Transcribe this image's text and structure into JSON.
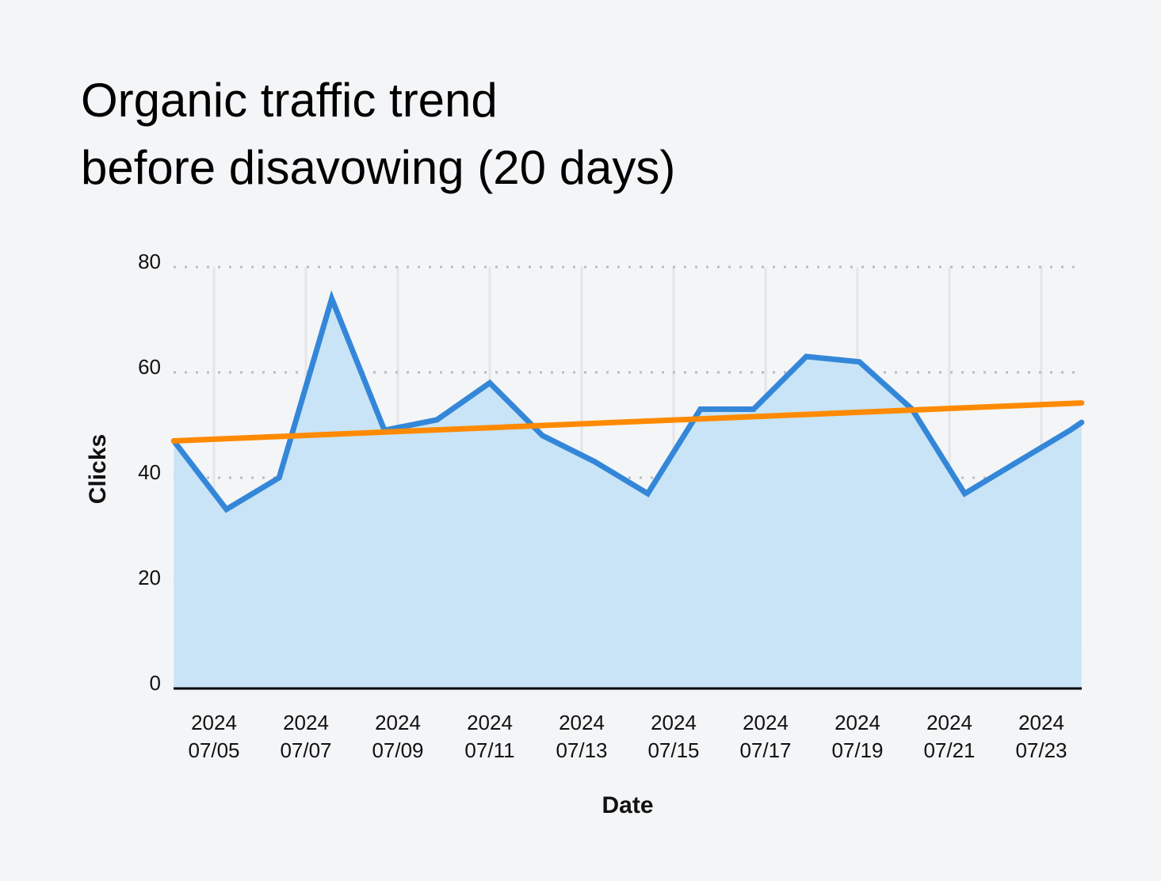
{
  "chart_data": {
    "type": "area",
    "title": [
      "Organic traffic trend",
      "before disavowing (20 days)"
    ],
    "xlabel": "Date",
    "ylabel": "Clicks",
    "ylim": [
      0,
      80
    ],
    "yticks": [
      0,
      20,
      40,
      60,
      80
    ],
    "xticks": [
      {
        "date": "2024-07-05",
        "line1": "2024",
        "line2": "07/05"
      },
      {
        "date": "2024-07-07",
        "line1": "2024",
        "line2": "07/07"
      },
      {
        "date": "2024-07-09",
        "line1": "2024",
        "line2": "07/09"
      },
      {
        "date": "2024-07-11",
        "line1": "2024",
        "line2": "07/11"
      },
      {
        "date": "2024-07-13",
        "line1": "2024",
        "line2": "07/13"
      },
      {
        "date": "2024-07-15",
        "line1": "2024",
        "line2": "07/15"
      },
      {
        "date": "2024-07-17",
        "line1": "2024",
        "line2": "07/17"
      },
      {
        "date": "2024-07-19",
        "line1": "2024",
        "line2": "07/19"
      },
      {
        "date": "2024-07-21",
        "line1": "2024",
        "line2": "07/21"
      },
      {
        "date": "2024-07-23",
        "line1": "2024",
        "line2": "07/23"
      }
    ],
    "grid": {
      "horizontal": "dotted",
      "vertical": true
    },
    "series": [
      {
        "kind": "area-line",
        "color": "#3487d8",
        "fill": "#c8e4f6",
        "points": [
          {
            "x": "2024-07-04T03:00",
            "y": 47
          },
          {
            "x": "2024-07-05T06:30",
            "y": 34
          },
          {
            "x": "2024-07-06T10:00",
            "y": 40
          },
          {
            "x": "2024-07-07T13:30",
            "y": 74
          },
          {
            "x": "2024-07-08T17:00",
            "y": 49
          },
          {
            "x": "2024-07-09T20:30",
            "y": 51
          },
          {
            "x": "2024-07-11T00:00",
            "y": 58
          },
          {
            "x": "2024-07-12T03:30",
            "y": 48
          },
          {
            "x": "2024-07-13T07:00",
            "y": 43
          },
          {
            "x": "2024-07-14T10:30",
            "y": 37
          },
          {
            "x": "2024-07-15T14:00",
            "y": 53
          },
          {
            "x": "2024-07-16T17:45",
            "y": 53
          },
          {
            "x": "2024-07-17T21:15",
            "y": 63
          },
          {
            "x": "2024-07-19T01:00",
            "y": 62
          },
          {
            "x": "2024-07-20T04:30",
            "y": 53
          },
          {
            "x": "2024-07-21T08:00",
            "y": 37
          },
          {
            "x": "2024-07-22T11:30",
            "y": 43
          },
          {
            "x": "2024-07-23T15:00",
            "y": 49
          },
          {
            "x": "2024-07-23T21:00",
            "y": 50.5
          }
        ]
      },
      {
        "kind": "trend-line",
        "color": "#ff8a00",
        "points": [
          {
            "x": "2024-07-04T03:00",
            "y": 47
          },
          {
            "x": "2024-07-23T21:00",
            "y": 54.2
          }
        ]
      }
    ]
  }
}
